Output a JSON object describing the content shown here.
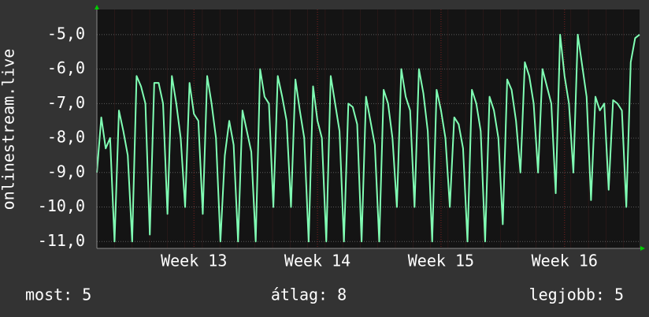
{
  "chart_data": {
    "type": "line",
    "ylabel": "onlinestream.live",
    "x": [
      0,
      1,
      2,
      3,
      4,
      5,
      6,
      7,
      8,
      9,
      10,
      11,
      12,
      13,
      14,
      15,
      16,
      17,
      18,
      19,
      20,
      21,
      22,
      23,
      24,
      25,
      26,
      27,
      28,
      29,
      30,
      31,
      32,
      33,
      34,
      35,
      36,
      37,
      38,
      39,
      40,
      41,
      42,
      43,
      44,
      45,
      46,
      47,
      48,
      49,
      50,
      51,
      52,
      53,
      54,
      55,
      56,
      57,
      58,
      59,
      60,
      61,
      62,
      63,
      64,
      65,
      66,
      67,
      68,
      69,
      70,
      71,
      72,
      73,
      74,
      75,
      76,
      77,
      78,
      79,
      80,
      81,
      82,
      83,
      84,
      85,
      86,
      87,
      88,
      89,
      90,
      91,
      92,
      93,
      94,
      95,
      96,
      97,
      98,
      99,
      100,
      101,
      102,
      103,
      104,
      105,
      106,
      107,
      108,
      109,
      110,
      111,
      112,
      113,
      114,
      115,
      116,
      117,
      118,
      119,
      120,
      121,
      122,
      123
    ],
    "series": [
      {
        "name": "onlinestream.live",
        "color": "#80ffb4",
        "values": [
          -9.0,
          -7.4,
          -8.3,
          -8.0,
          -11.0,
          -7.2,
          -7.8,
          -8.5,
          -11.0,
          -6.2,
          -6.5,
          -7.0,
          -10.8,
          -6.4,
          -6.4,
          -7.0,
          -10.2,
          -6.2,
          -7.0,
          -8.0,
          -10.0,
          -6.4,
          -7.3,
          -7.5,
          -10.2,
          -6.2,
          -7.0,
          -8.0,
          -11.0,
          -8.5,
          -7.5,
          -8.2,
          -11.0,
          -7.2,
          -7.8,
          -8.4,
          -11.0,
          -6.0,
          -6.8,
          -7.0,
          -10.0,
          -6.2,
          -6.8,
          -7.5,
          -10.0,
          -6.3,
          -7.2,
          -8.0,
          -11.0,
          -6.5,
          -7.5,
          -8.0,
          -11.0,
          -6.2,
          -7.0,
          -7.8,
          -11.0,
          -7.0,
          -7.1,
          -7.6,
          -11.0,
          -6.8,
          -7.5,
          -8.2,
          -11.0,
          -6.6,
          -7.0,
          -8.0,
          -10.0,
          -6.0,
          -6.8,
          -7.2,
          -10.0,
          -6.0,
          -6.7,
          -7.8,
          -11.0,
          -6.6,
          -7.2,
          -8.0,
          -10.0,
          -7.4,
          -7.6,
          -8.3,
          -11.0,
          -6.6,
          -7.0,
          -7.8,
          -11.0,
          -6.8,
          -7.2,
          -8.0,
          -10.5,
          -6.3,
          -6.6,
          -7.5,
          -9.0,
          -5.8,
          -6.2,
          -7.0,
          -9.0,
          -6.0,
          -6.5,
          -7.0,
          -9.6,
          -5.0,
          -6.2,
          -7.0,
          -9.0,
          -5.0,
          -5.9,
          -6.8,
          -9.8,
          -6.8,
          -7.2,
          -7.0,
          -9.5,
          -6.9,
          -7.0,
          -7.2,
          -10.0,
          -5.8,
          -5.1,
          -5.0
        ]
      }
    ],
    "xlim": [
      0,
      123
    ],
    "xticks": [
      {
        "value": 22,
        "label": "Week 13"
      },
      {
        "value": 50,
        "label": "Week 14"
      },
      {
        "value": 78,
        "label": "Week 15"
      },
      {
        "value": 106,
        "label": "Week 16"
      }
    ],
    "ylim": [
      -11.2,
      -4.27
    ],
    "yticks": [
      {
        "value": -11,
        "label": "-11,0"
      },
      {
        "value": -10,
        "label": "-10,0"
      },
      {
        "value": -9,
        "label": "-9,0"
      },
      {
        "value": -8,
        "label": "-8,0"
      },
      {
        "value": -7,
        "label": "-7,0"
      },
      {
        "value": -6,
        "label": "-6,0"
      },
      {
        "value": -5,
        "label": "-5,0"
      }
    ],
    "grid": true,
    "footer": {
      "current": "most: 5",
      "average": "átlag: 8",
      "best": "legjobb: 5"
    }
  }
}
